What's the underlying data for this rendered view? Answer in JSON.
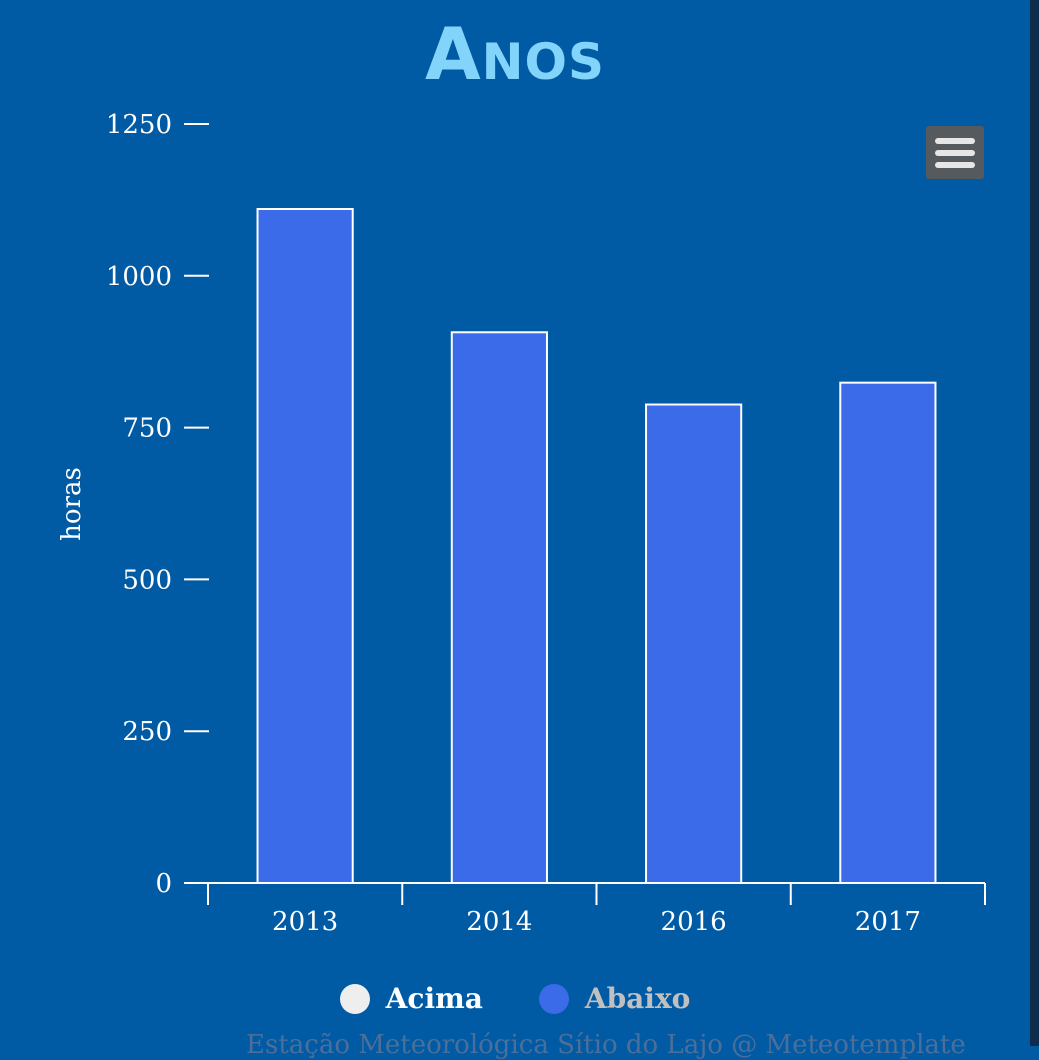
{
  "chart_data": {
    "type": "bar",
    "title": "Anos",
    "ylabel": "horas",
    "xlabel": "",
    "categories": [
      "2013",
      "2014",
      "2016",
      "2017"
    ],
    "series": [
      {
        "name": "Abaixo",
        "values": [
          1110,
          907,
          788,
          824
        ]
      }
    ],
    "ylim": [
      0,
      1250
    ],
    "yticks": [
      "0",
      "250",
      "500",
      "750",
      "1000",
      "1250"
    ],
    "grid": false,
    "legend_position": "bottom"
  },
  "legend": {
    "items": [
      {
        "label": "Acima",
        "color": "#eeeeee",
        "text_color": "#ffffff"
      },
      {
        "label": "Abaixo",
        "color": "#3b6be8",
        "text_color": "#c0c0c0"
      }
    ]
  },
  "colors": {
    "background": "#015ba4",
    "bar_fill": "#3b6be8",
    "bar_stroke": "#ffffff",
    "title": "#83d4fb",
    "menu_button": "#555a5e"
  },
  "menu": {
    "icon": "hamburger-menu-icon"
  },
  "footer": {
    "text": "Estação Meteorológica Sítio do Lajo @ Meteotemplate"
  }
}
